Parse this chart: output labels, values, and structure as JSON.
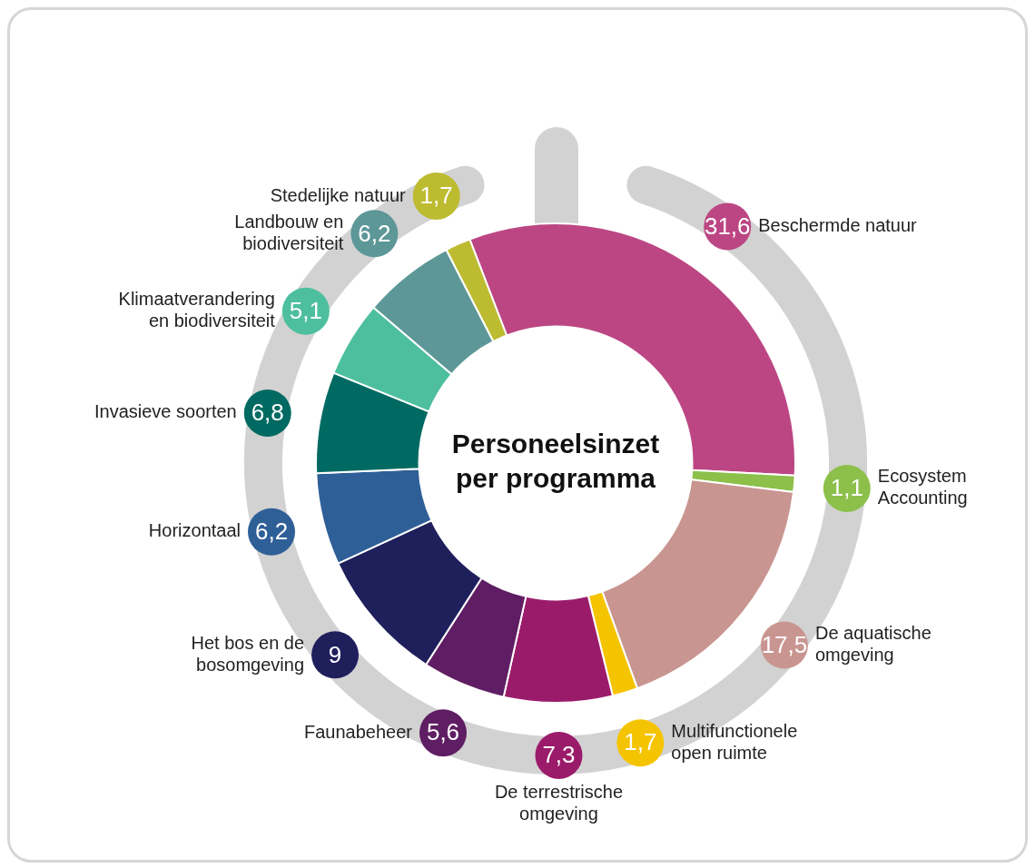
{
  "chart_data": {
    "type": "donut",
    "title": "Personeelsinzet per programma",
    "categories": [
      "Beschermde natuur",
      "Ecosystem Accounting",
      "De aquatische omgeving",
      "Multifunctionele open ruimte",
      "De terrestrische omgeving",
      "Faunabeheer",
      "Het bos en de bosomgeving",
      "Horizontaal",
      "Invasieve soorten",
      "Klimaatverandering en biodiversiteit",
      "Landbouw en biodiversiteit",
      "Stedelijke natuur"
    ],
    "values": [
      31.6,
      1.1,
      17.5,
      1.7,
      7.3,
      5.6,
      9,
      6.2,
      6.8,
      5.1,
      6.2,
      1.7
    ],
    "value_labels": [
      "31,6",
      "1,1",
      "17,5",
      "1,7",
      "7,3",
      "5,6",
      "9",
      "6,2",
      "6,8",
      "5,1",
      "6,2",
      "1,7"
    ],
    "colors": [
      "#bc4683",
      "#8cc04a",
      "#c99590",
      "#f5c400",
      "#9b1b6b",
      "#5f1d63",
      "#1e1f5b",
      "#2f5f97",
      "#006a62",
      "#4dbf9f",
      "#5e9797",
      "#bdbb30"
    ]
  }
}
